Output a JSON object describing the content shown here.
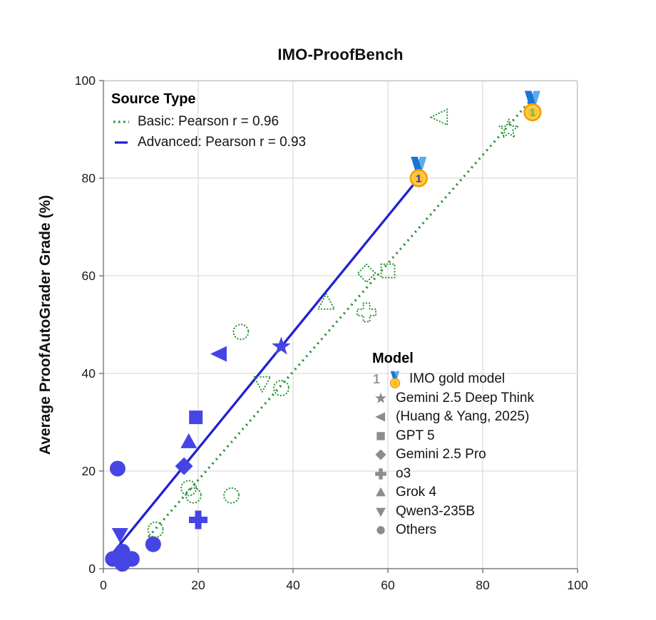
{
  "title": "IMO-ProofBench",
  "y_axis_label": "Average ProofAutoGrader Grade (%)",
  "colors": {
    "advanced": "#4545e6",
    "advanced_line": "#2121d0",
    "basic": "#2e9438",
    "legend_gray": "#8c8c8c",
    "grid": "#dcdcdc",
    "border": "#c4c4c4",
    "spine": "#8a8a8a",
    "tick": "#6f6f6f",
    "tick_text": "#1a1a1a",
    "medal_coin": "#FFC12B",
    "medal_rim": "#F29D0E",
    "medal_ring": "#FBD560",
    "medal_ribbon_dark": "#1a74d4",
    "medal_ribbon_light": "#5aacf0",
    "medal_num_advanced": "#2233cc",
    "medal_num_basic": "#5cb85c"
  },
  "legend_source": {
    "title": "Source Type",
    "items": [
      {
        "label": "Basic: Pearson r = 0.96",
        "style": "dotted",
        "color_key": "basic"
      },
      {
        "label": "Advanced: Pearson r = 0.93",
        "style": "solid",
        "color_key": "advanced_line"
      }
    ]
  },
  "legend_model": {
    "title": "Model",
    "items": [
      {
        "marker": "medal",
        "label": "IMO gold model"
      },
      {
        "marker": "star",
        "label": "Gemini 2.5 Deep Think"
      },
      {
        "marker": "tri-left",
        "label": "(Huang & Yang, 2025)"
      },
      {
        "marker": "square",
        "label": "GPT 5"
      },
      {
        "marker": "diamond",
        "label": "Gemini 2.5 Pro"
      },
      {
        "marker": "plus",
        "label": "o3"
      },
      {
        "marker": "tri-up",
        "label": "Grok 4"
      },
      {
        "marker": "tri-down",
        "label": "Qwen3-235B"
      },
      {
        "marker": "circle",
        "label": "Others"
      }
    ]
  },
  "chart_data": {
    "type": "scatter",
    "title": "IMO-ProofBench",
    "xlabel": "",
    "ylabel": "Average ProofAutoGrader Grade (%)",
    "xlim": [
      0,
      100
    ],
    "ylim": [
      0,
      100
    ],
    "xticks": [
      0,
      20,
      40,
      60,
      80,
      100
    ],
    "yticks": [
      0,
      20,
      40,
      60,
      80,
      100
    ],
    "grid": true,
    "legend_position": {
      "source_type": "upper-left",
      "model": "lower-right"
    },
    "series": [
      {
        "name": "Basic",
        "pearson_r": 0.96,
        "trend_line": {
          "style": "dotted",
          "x": [
            9.5,
            91.5
          ],
          "y": [
            6.5,
            97.5
          ]
        },
        "points": [
          {
            "marker": "medal",
            "model": "IMO gold model",
            "x": 90.5,
            "y": 93.5
          },
          {
            "marker": "star",
            "model": "Gemini 2.5 Deep Think",
            "x": 85.5,
            "y": 90
          },
          {
            "marker": "tri-left",
            "model": "(Huang & Yang, 2025)",
            "x": 71,
            "y": 92.5
          },
          {
            "marker": "square",
            "model": "GPT 5",
            "x": 60,
            "y": 61
          },
          {
            "marker": "diamond",
            "model": "Gemini 2.5 Pro",
            "x": 55.5,
            "y": 60.5
          },
          {
            "marker": "plus",
            "model": "o3",
            "x": 55.5,
            "y": 52.5
          },
          {
            "marker": "tri-up",
            "model": "Grok 4",
            "x": 47,
            "y": 54.5
          },
          {
            "marker": "tri-down",
            "model": "Qwen3-235B",
            "x": 33.5,
            "y": 38
          },
          {
            "marker": "circle",
            "model": "Others",
            "x": 29,
            "y": 48.5
          },
          {
            "marker": "circle",
            "model": "Others",
            "x": 37.5,
            "y": 37
          },
          {
            "marker": "circle",
            "model": "Others",
            "x": 27,
            "y": 15
          },
          {
            "marker": "circle",
            "model": "Others",
            "x": 19,
            "y": 15
          },
          {
            "marker": "circle",
            "model": "Others",
            "x": 18,
            "y": 16.5
          },
          {
            "marker": "circle",
            "model": "Others",
            "x": 11,
            "y": 8
          }
        ]
      },
      {
        "name": "Advanced",
        "pearson_r": 0.93,
        "trend_line": {
          "style": "solid",
          "x": [
            1,
            66.5
          ],
          "y": [
            2,
            80
          ]
        },
        "points": [
          {
            "marker": "medal",
            "model": "IMO gold model",
            "x": 66.5,
            "y": 80
          },
          {
            "marker": "star",
            "model": "Gemini 2.5 Deep Think",
            "x": 37.5,
            "y": 45.5
          },
          {
            "marker": "tri-left",
            "model": "(Huang & Yang, 2025)",
            "x": 24.5,
            "y": 44
          },
          {
            "marker": "square",
            "model": "GPT 5",
            "x": 19.5,
            "y": 31
          },
          {
            "marker": "tri-up",
            "model": "Grok 4",
            "x": 18,
            "y": 26
          },
          {
            "marker": "diamond",
            "model": "Gemini 2.5 Pro",
            "x": 17,
            "y": 21
          },
          {
            "marker": "plus",
            "model": "o3",
            "x": 20,
            "y": 10
          },
          {
            "marker": "tri-down",
            "model": "Qwen3-235B",
            "x": 3.5,
            "y": 7
          },
          {
            "marker": "circle",
            "model": "Others",
            "x": 3,
            "y": 20.5
          },
          {
            "marker": "circle",
            "model": "Others",
            "x": 10.5,
            "y": 5
          },
          {
            "marker": "circle",
            "model": "Others",
            "x": 4,
            "y": 3.5
          },
          {
            "marker": "circle",
            "model": "Others",
            "x": 2,
            "y": 2
          },
          {
            "marker": "circle",
            "model": "Others",
            "x": 6,
            "y": 2
          },
          {
            "marker": "circle",
            "model": "Others",
            "x": 4,
            "y": 1
          }
        ]
      }
    ]
  }
}
